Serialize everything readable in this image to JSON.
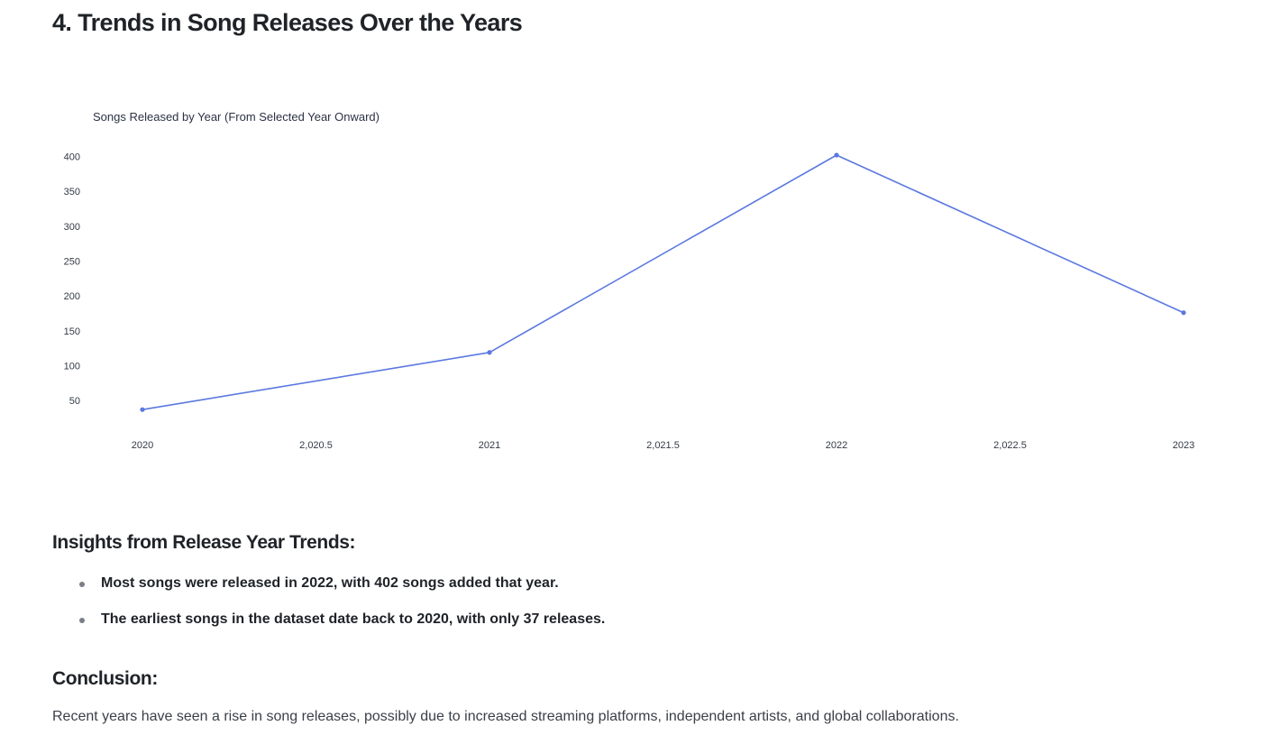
{
  "section": {
    "title": "4. Trends in Song Releases Over the Years"
  },
  "chart_data": {
    "type": "line",
    "title": "Songs Released by Year (From Selected Year Onward)",
    "xlabel": "",
    "ylabel": "",
    "x": [
      2020,
      2021,
      2022,
      2023
    ],
    "series": [
      {
        "values": [
          37,
          119,
          402,
          176
        ]
      }
    ],
    "xlim": [
      2020,
      2023
    ],
    "ylim": [
      23,
      402
    ],
    "x_ticks": [
      "2020",
      "2,020.5",
      "2021",
      "2,021.5",
      "2022",
      "2,022.5",
      "2023"
    ],
    "x_tick_values": [
      2020,
      2020.5,
      2021,
      2021.5,
      2022,
      2022.5,
      2023
    ],
    "y_ticks": [
      50,
      100,
      150,
      200,
      250,
      300,
      350,
      400
    ],
    "grid": false,
    "legend": "none",
    "line_color": "#5b78e0"
  },
  "insights": {
    "heading": "Insights from Release Year Trends:",
    "items": [
      "Most songs were released in 2022, with 402 songs added that year.",
      "The earliest songs in the dataset date back to 2020, with only 37 releases."
    ]
  },
  "conclusion": {
    "heading": "Conclusion:",
    "text": "Recent years have seen a rise in song releases, possibly due to increased streaming platforms, independent artists, and global collaborations."
  }
}
